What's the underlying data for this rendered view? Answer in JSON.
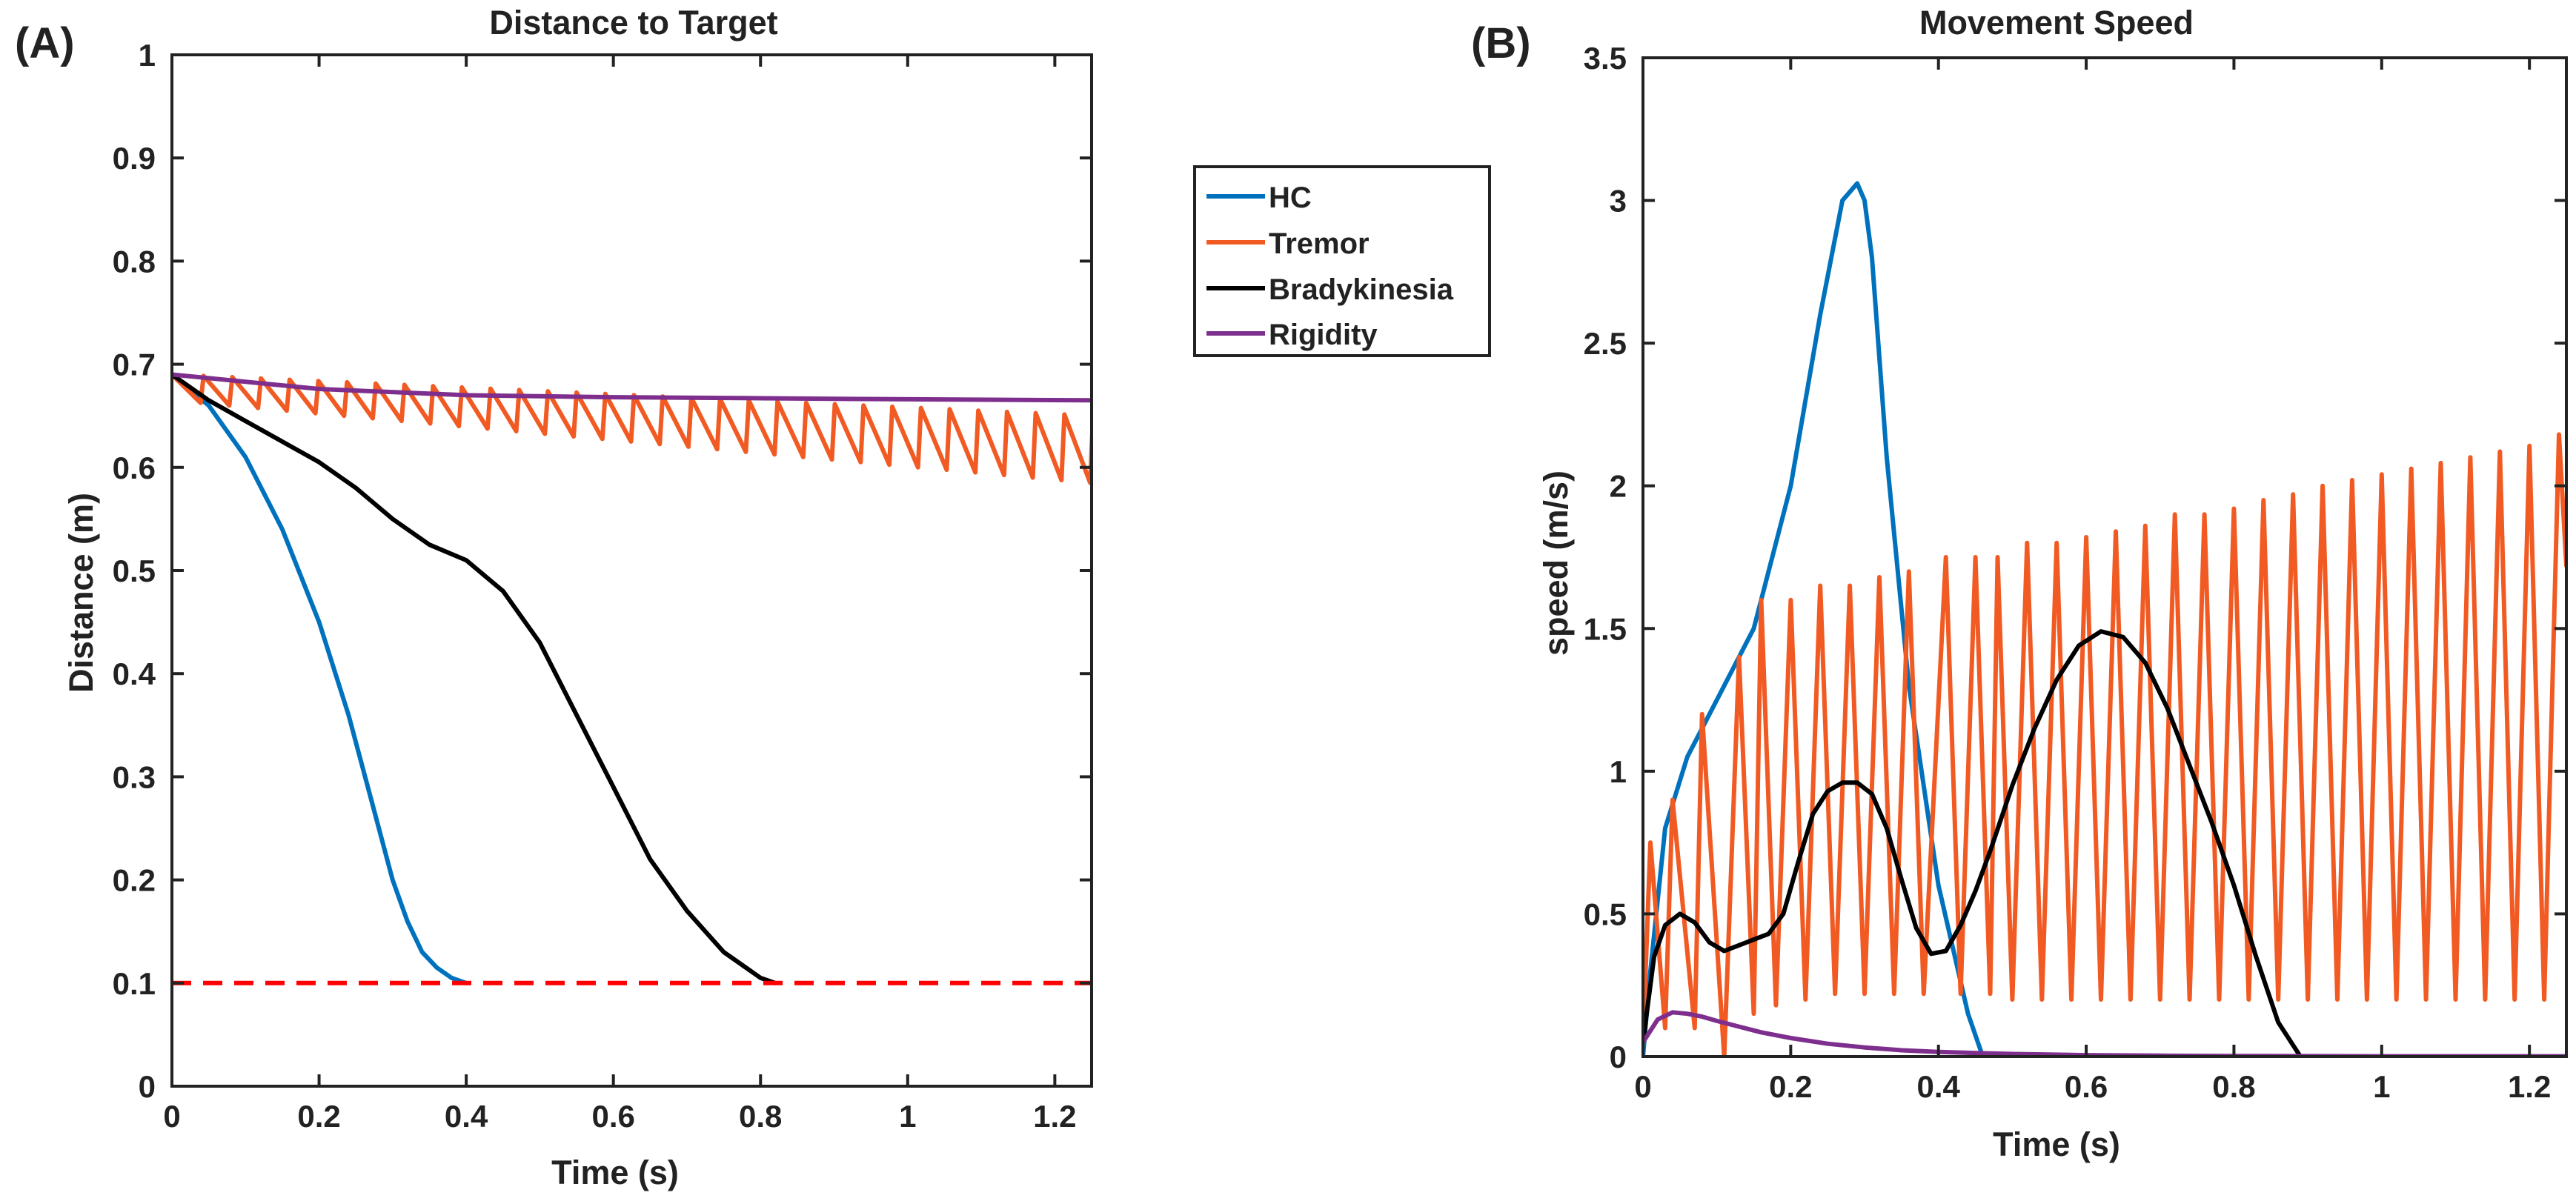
{
  "chart_data": [
    {
      "id": "A",
      "panel_label": "(A)",
      "type": "line",
      "title": "Distance to Target",
      "xlabel": "Time (s)",
      "ylabel": "Distance (m)",
      "xlim": [
        0,
        1.25
      ],
      "ylim": [
        0,
        1
      ],
      "xticks": [
        0,
        0.2,
        0.4,
        0.6,
        0.8,
        1,
        1.2
      ],
      "xtick_labels": [
        "0",
        "0.2",
        "0.4",
        "0.6",
        "0.8",
        "1",
        "1.2"
      ],
      "yticks": [
        0,
        0.1,
        0.2,
        0.3,
        0.4,
        0.5,
        0.6,
        0.7,
        0.8,
        0.9,
        1
      ],
      "ytick_labels": [
        "0",
        "0.1",
        "0.2",
        "0.3",
        "0.4",
        "0.5",
        "0.6",
        "0.7",
        "0.8",
        "0.9",
        "1"
      ],
      "grid": false,
      "series": [
        {
          "name": "HC",
          "color": "#0072BD",
          "x": [
            0,
            0.05,
            0.1,
            0.15,
            0.2,
            0.24,
            0.27,
            0.3,
            0.32,
            0.34,
            0.36,
            0.38,
            0.4
          ],
          "y": [
            0.69,
            0.66,
            0.61,
            0.54,
            0.45,
            0.36,
            0.28,
            0.2,
            0.16,
            0.13,
            0.115,
            0.105,
            0.1
          ]
        },
        {
          "name": "Tremor",
          "color": "#F15A22",
          "pattern": "sawtooth",
          "t_start": 0,
          "t_end": 1.25,
          "period": 0.039,
          "peak_start": 0.69,
          "peak_end": 0.65,
          "trough_start": 0.665,
          "trough_end": 0.585
        },
        {
          "name": "Bradykinesia",
          "color": "#000000",
          "x": [
            0,
            0.05,
            0.1,
            0.15,
            0.2,
            0.25,
            0.3,
            0.35,
            0.4,
            0.45,
            0.5,
            0.55,
            0.6,
            0.65,
            0.7,
            0.75,
            0.8,
            0.82
          ],
          "y": [
            0.69,
            0.665,
            0.645,
            0.625,
            0.605,
            0.58,
            0.55,
            0.525,
            0.51,
            0.48,
            0.43,
            0.36,
            0.29,
            0.22,
            0.17,
            0.13,
            0.105,
            0.1
          ]
        },
        {
          "name": "Rigidity",
          "color": "#7E2F8E",
          "x": [
            0,
            0.2,
            0.4,
            0.6,
            0.8,
            1.0,
            1.25
          ],
          "y": [
            0.69,
            0.676,
            0.67,
            0.668,
            0.667,
            0.666,
            0.665
          ]
        },
        {
          "name": "threshold",
          "color": "#FF0000",
          "dashed": true,
          "x": [
            0,
            1.25
          ],
          "y": [
            0.1,
            0.1
          ]
        }
      ]
    },
    {
      "id": "B",
      "panel_label": "(B)",
      "type": "line",
      "title": "Movement Speed",
      "xlabel": "Time (s)",
      "ylabel": "speed (m/s)",
      "xlim": [
        0,
        1.25
      ],
      "ylim": [
        0,
        3.5
      ],
      "xticks": [
        0,
        0.2,
        0.4,
        0.6,
        0.8,
        1,
        1.2
      ],
      "xtick_labels": [
        "0",
        "0.2",
        "0.4",
        "0.6",
        "0.8",
        "1",
        "1.2"
      ],
      "yticks": [
        0,
        0.5,
        1,
        1.5,
        2,
        2.5,
        3,
        3.5
      ],
      "ytick_labels": [
        "0",
        "0.5",
        "1",
        "1.5",
        "2",
        "2.5",
        "3",
        "3.5"
      ],
      "grid": false,
      "series": [
        {
          "name": "HC",
          "color": "#0072BD",
          "x": [
            0,
            0.01,
            0.03,
            0.06,
            0.1,
            0.15,
            0.2,
            0.24,
            0.27,
            0.29,
            0.3,
            0.31,
            0.33,
            0.36,
            0.4,
            0.44,
            0.46
          ],
          "y": [
            0,
            0.3,
            0.8,
            1.05,
            1.25,
            1.5,
            2.0,
            2.6,
            3.0,
            3.06,
            3.0,
            2.8,
            2.1,
            1.3,
            0.6,
            0.15,
            0
          ]
        },
        {
          "name": "Tremor",
          "color": "#F15A22",
          "pattern": "spiky",
          "peak_times": [
            0.01,
            0.04,
            0.08,
            0.13,
            0.16,
            0.2,
            0.24,
            0.28,
            0.32,
            0.36,
            0.41,
            0.45,
            0.48,
            0.52,
            0.56,
            0.6,
            0.64,
            0.68,
            0.72,
            0.76,
            0.8,
            0.84,
            0.88,
            0.92,
            0.96,
            1.0,
            1.04,
            1.08,
            1.12,
            1.16,
            1.2,
            1.24
          ],
          "peak_values": [
            0.75,
            0.9,
            1.2,
            1.4,
            1.6,
            1.6,
            1.65,
            1.65,
            1.68,
            1.7,
            1.75,
            1.75,
            1.75,
            1.8,
            1.8,
            1.82,
            1.84,
            1.86,
            1.9,
            1.9,
            1.92,
            1.95,
            1.97,
            2.0,
            2.02,
            2.04,
            2.06,
            2.08,
            2.1,
            2.12,
            2.14,
            2.18
          ],
          "trough_times": [
            0.03,
            0.07,
            0.11,
            0.15,
            0.18,
            0.22,
            0.26,
            0.3,
            0.34,
            0.38,
            0.43,
            0.47,
            0.5,
            0.54,
            0.58,
            0.62,
            0.66,
            0.7,
            0.74,
            0.78,
            0.82,
            0.86,
            0.9,
            0.94,
            0.98,
            1.02,
            1.06,
            1.1,
            1.14,
            1.18,
            1.22
          ],
          "trough_values": [
            0.1,
            0.1,
            0.0,
            0.15,
            0.18,
            0.2,
            0.22,
            0.22,
            0.22,
            0.22,
            0.22,
            0.22,
            0.2,
            0.2,
            0.2,
            0.2,
            0.2,
            0.2,
            0.2,
            0.2,
            0.2,
            0.2,
            0.2,
            0.2,
            0.2,
            0.2,
            0.2,
            0.2,
            0.2,
            0.2,
            0.2
          ],
          "end": [
            1.25,
            1.72
          ]
        },
        {
          "name": "Bradykinesia",
          "color": "#000000",
          "x": [
            0,
            0.015,
            0.03,
            0.05,
            0.07,
            0.09,
            0.11,
            0.13,
            0.15,
            0.17,
            0.19,
            0.21,
            0.23,
            0.25,
            0.27,
            0.29,
            0.31,
            0.33,
            0.35,
            0.37,
            0.39,
            0.41,
            0.43,
            0.45,
            0.47,
            0.5,
            0.53,
            0.56,
            0.59,
            0.62,
            0.65,
            0.68,
            0.71,
            0.74,
            0.77,
            0.8,
            0.83,
            0.86,
            0.89
          ],
          "y": [
            0.05,
            0.35,
            0.46,
            0.5,
            0.47,
            0.4,
            0.37,
            0.39,
            0.41,
            0.43,
            0.5,
            0.68,
            0.85,
            0.93,
            0.96,
            0.96,
            0.92,
            0.8,
            0.62,
            0.45,
            0.36,
            0.37,
            0.46,
            0.58,
            0.72,
            0.95,
            1.15,
            1.32,
            1.44,
            1.49,
            1.47,
            1.38,
            1.22,
            1.02,
            0.82,
            0.6,
            0.35,
            0.12,
            0
          ]
        },
        {
          "name": "Rigidity",
          "color": "#7E2F8E",
          "x": [
            0,
            0.02,
            0.04,
            0.06,
            0.08,
            0.1,
            0.13,
            0.16,
            0.2,
            0.25,
            0.3,
            0.35,
            0.4,
            0.5,
            0.6,
            0.7,
            0.8,
            1.0,
            1.25
          ],
          "y": [
            0.05,
            0.13,
            0.155,
            0.15,
            0.14,
            0.125,
            0.105,
            0.085,
            0.065,
            0.045,
            0.032,
            0.022,
            0.016,
            0.009,
            0.005,
            0.003,
            0.002,
            0.001,
            0.001
          ]
        }
      ]
    }
  ],
  "legend": {
    "placement": "right of panel A",
    "items": [
      {
        "label": "HC",
        "color": "#0072BD"
      },
      {
        "label": "Tremor",
        "color": "#F15A22"
      },
      {
        "label": "Bradykinesia",
        "color": "#000000"
      },
      {
        "label": "Rigidity",
        "color": "#7E2F8E"
      }
    ]
  }
}
